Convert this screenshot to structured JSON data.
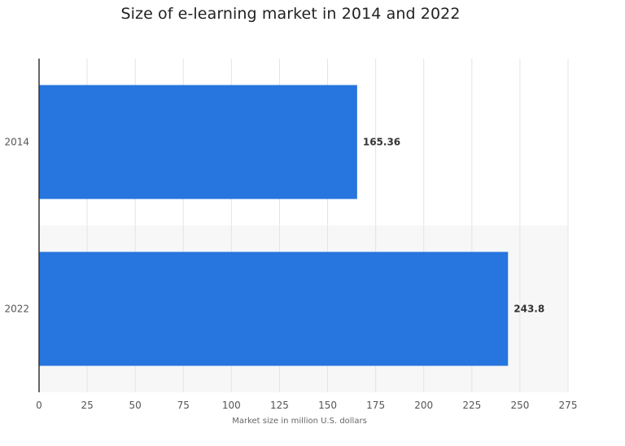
{
  "chart_data": {
    "type": "bar",
    "orientation": "horizontal",
    "title": "Size of e-learning market in 2014 and 2022",
    "xlabel": "Market size in million U.S. dollars",
    "ylabel": "",
    "categories": [
      "2014",
      "2022"
    ],
    "values": [
      165.36,
      243.8
    ],
    "value_labels": [
      "165.36",
      "243.8"
    ],
    "xlim": [
      0,
      275
    ],
    "xticks": [
      0,
      25,
      50,
      75,
      100,
      125,
      150,
      175,
      200,
      225,
      250,
      275
    ],
    "grid": true,
    "legend": "none",
    "colors": {
      "bar": "#2775de",
      "band_alt": "#f7f7f7",
      "grid": "#e4e4e4",
      "axis": "#333333"
    }
  }
}
